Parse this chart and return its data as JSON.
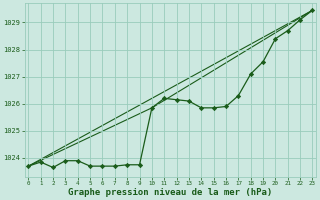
{
  "background_color": "#cce8e0",
  "grid_color": "#99ccbb",
  "line_color": "#1a5c1a",
  "marker_color": "#1a5c1a",
  "xlabel": "Graphe pression niveau de la mer (hPa)",
  "xlabel_fontsize": 6.5,
  "yticks": [
    1024,
    1025,
    1026,
    1027,
    1028,
    1029
  ],
  "xticks": [
    0,
    1,
    2,
    3,
    4,
    5,
    6,
    7,
    8,
    9,
    10,
    11,
    12,
    13,
    14,
    15,
    16,
    17,
    18,
    19,
    20,
    21,
    22,
    23
  ],
  "xlim": [
    -0.3,
    23.3
  ],
  "ylim": [
    1023.3,
    1029.7
  ],
  "line1_x": [
    0,
    1,
    2,
    3,
    4,
    5,
    6,
    7,
    8,
    9,
    10,
    11,
    12,
    13,
    14,
    15,
    16,
    17,
    18,
    19,
    20,
    21,
    22,
    23
  ],
  "line1_y": [
    1023.7,
    1023.85,
    1023.65,
    1023.9,
    1023.9,
    1023.7,
    1023.7,
    1023.7,
    1023.75,
    1023.75,
    1025.85,
    1026.2,
    1026.15,
    1026.1,
    1025.85,
    1025.85,
    1025.9,
    1026.3,
    1027.1,
    1027.55,
    1028.4,
    1028.7,
    1029.1,
    1029.45
  ],
  "line2_x": [
    0,
    23
  ],
  "line2_y": [
    1023.7,
    1029.45
  ],
  "line3_x": [
    0,
    10,
    23
  ],
  "line3_y": [
    1023.7,
    1025.85,
    1029.45
  ]
}
